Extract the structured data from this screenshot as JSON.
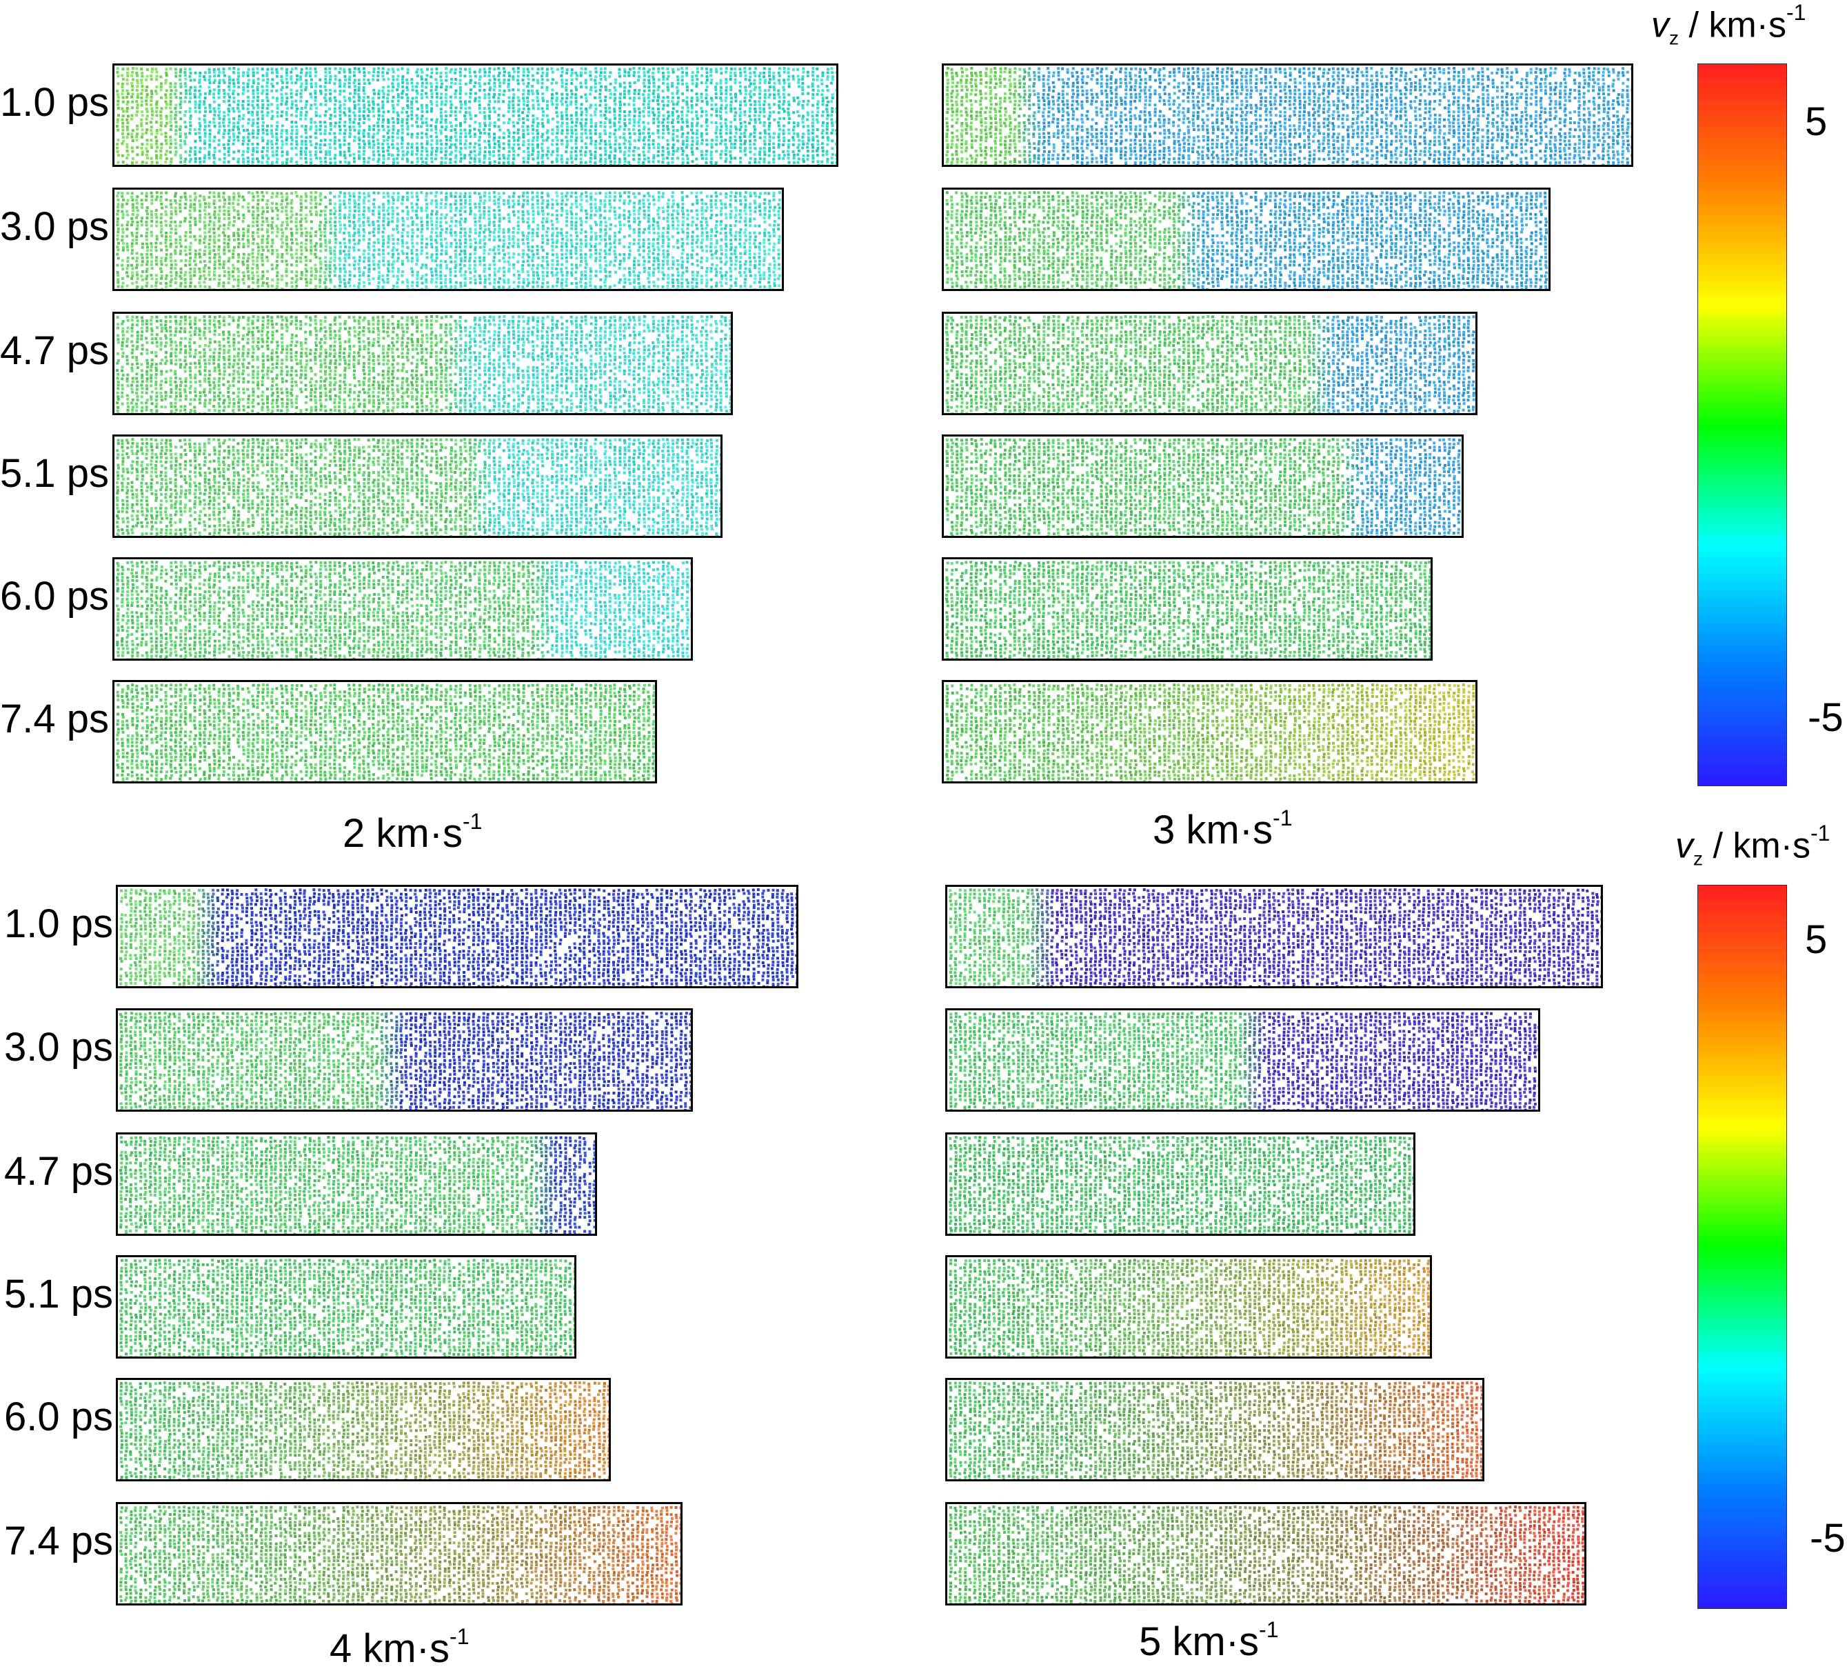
{
  "panels": [
    {
      "caption": {
        "value": "2",
        "unit": "km·s",
        "exp": "-1"
      },
      "rows": [
        {
          "time": "1.0 ps",
          "length": 1.0,
          "front": 0.09,
          "left_color": "#7ed957",
          "right_color": "#35d7c9"
        },
        {
          "time": "3.0 ps",
          "length": 0.925,
          "front": 0.32,
          "left_color": "#6fd56a",
          "right_color": "#46dcd0"
        },
        {
          "time": "4.7 ps",
          "length": 0.855,
          "front": 0.55,
          "left_color": "#63d26a",
          "right_color": "#48dad0"
        },
        {
          "time": "5.1 ps",
          "length": 0.84,
          "front": 0.6,
          "left_color": "#62d06d",
          "right_color": "#46dad2"
        },
        {
          "time": "6.0 ps",
          "length": 0.8,
          "front": 0.74,
          "left_color": "#5ed070",
          "right_color": "#48dcd8"
        },
        {
          "time": "7.4 ps",
          "length": 0.75,
          "front": 1.0,
          "left_color": "#5ccf66",
          "right_color": "#5ccf66"
        }
      ]
    },
    {
      "caption": {
        "value": "3",
        "unit": "km·s",
        "exp": "-1"
      },
      "rows": [
        {
          "time": "",
          "length": 1.0,
          "front": 0.12,
          "left_color": "#6fd45d",
          "right_color": "#3fa6dc"
        },
        {
          "time": "",
          "length": 0.88,
          "front": 0.4,
          "left_color": "#61d06a",
          "right_color": "#3ba5dc"
        },
        {
          "time": "",
          "length": 0.775,
          "front": 0.7,
          "left_color": "#5dce6a",
          "right_color": "#3ea2dc"
        },
        {
          "time": "",
          "length": 0.755,
          "front": 0.78,
          "left_color": "#5acd6a",
          "right_color": "#3ea2dc"
        },
        {
          "time": "",
          "length": 0.71,
          "front": 1.0,
          "left_color": "#56cb6b",
          "right_color": "#56cb6b"
        },
        {
          "time": "",
          "length": 0.775,
          "front": 1.0,
          "left_color": "#5ecc62",
          "right_color": "#c9c23c"
        }
      ]
    },
    {
      "caption": {
        "value": "4",
        "unit": "km·s",
        "exp": "-1"
      },
      "rows": [
        {
          "time": "1.0 ps",
          "length": 1.0,
          "front": 0.13,
          "left_color": "#6cd36e",
          "right_color": "#2f44c8"
        },
        {
          "time": "3.0 ps",
          "length": 0.845,
          "front": 0.47,
          "left_color": "#5ccd6c",
          "right_color": "#3345c6"
        },
        {
          "time": "4.7 ps",
          "length": 0.705,
          "front": 0.88,
          "left_color": "#58cb6e",
          "right_color": "#3650c8"
        },
        {
          "time": "5.1 ps",
          "length": 0.675,
          "front": 1.0,
          "left_color": "#56c96f",
          "right_color": "#56c96f"
        },
        {
          "time": "6.0 ps",
          "length": 0.725,
          "front": 1.0,
          "left_color": "#56c86e",
          "right_color": "#e0893a"
        },
        {
          "time": "7.4 ps",
          "length": 0.83,
          "front": 1.0,
          "left_color": "#5bc86a",
          "right_color": "#e5703a"
        }
      ]
    },
    {
      "caption": {
        "value": "5",
        "unit": "km·s",
        "exp": "-1"
      },
      "rows": [
        {
          "time": "",
          "length": 1.0,
          "front": 0.14,
          "left_color": "#5fcf72",
          "right_color": "#4b39c4"
        },
        {
          "time": "",
          "length": 0.905,
          "front": 0.51,
          "left_color": "#55c96e",
          "right_color": "#4c3ac6"
        },
        {
          "time": "",
          "length": 0.715,
          "front": 1.0,
          "left_color": "#4fc36c",
          "right_color": "#4fc36c"
        },
        {
          "time": "",
          "length": 0.74,
          "front": 1.0,
          "left_color": "#52c56a",
          "right_color": "#d99b3e"
        },
        {
          "time": "",
          "length": 0.82,
          "front": 1.0,
          "left_color": "#54c46a",
          "right_color": "#e4683a"
        },
        {
          "time": "",
          "length": 0.975,
          "front": 1.0,
          "left_color": "#5cc566",
          "right_color": "#e8493a"
        }
      ]
    }
  ],
  "colorbars": [
    {
      "symbol": "v",
      "subscript": "z",
      "unit": "/ km·s",
      "exp": "-1",
      "max_label": "5",
      "min_label": "-5",
      "colors": [
        "#ff1f1f",
        "#ff8000",
        "#ffff00",
        "#00ff00",
        "#00ffff",
        "#0080ff",
        "#2a1aff"
      ]
    },
    {
      "symbol": "v",
      "subscript": "z",
      "unit": "/ km·s",
      "exp": "-1",
      "max_label": "5",
      "min_label": "-5",
      "colors": [
        "#ff1f1f",
        "#ff8000",
        "#ffff00",
        "#00ff00",
        "#00ffff",
        "#0080ff",
        "#2a1aff"
      ]
    }
  ]
}
